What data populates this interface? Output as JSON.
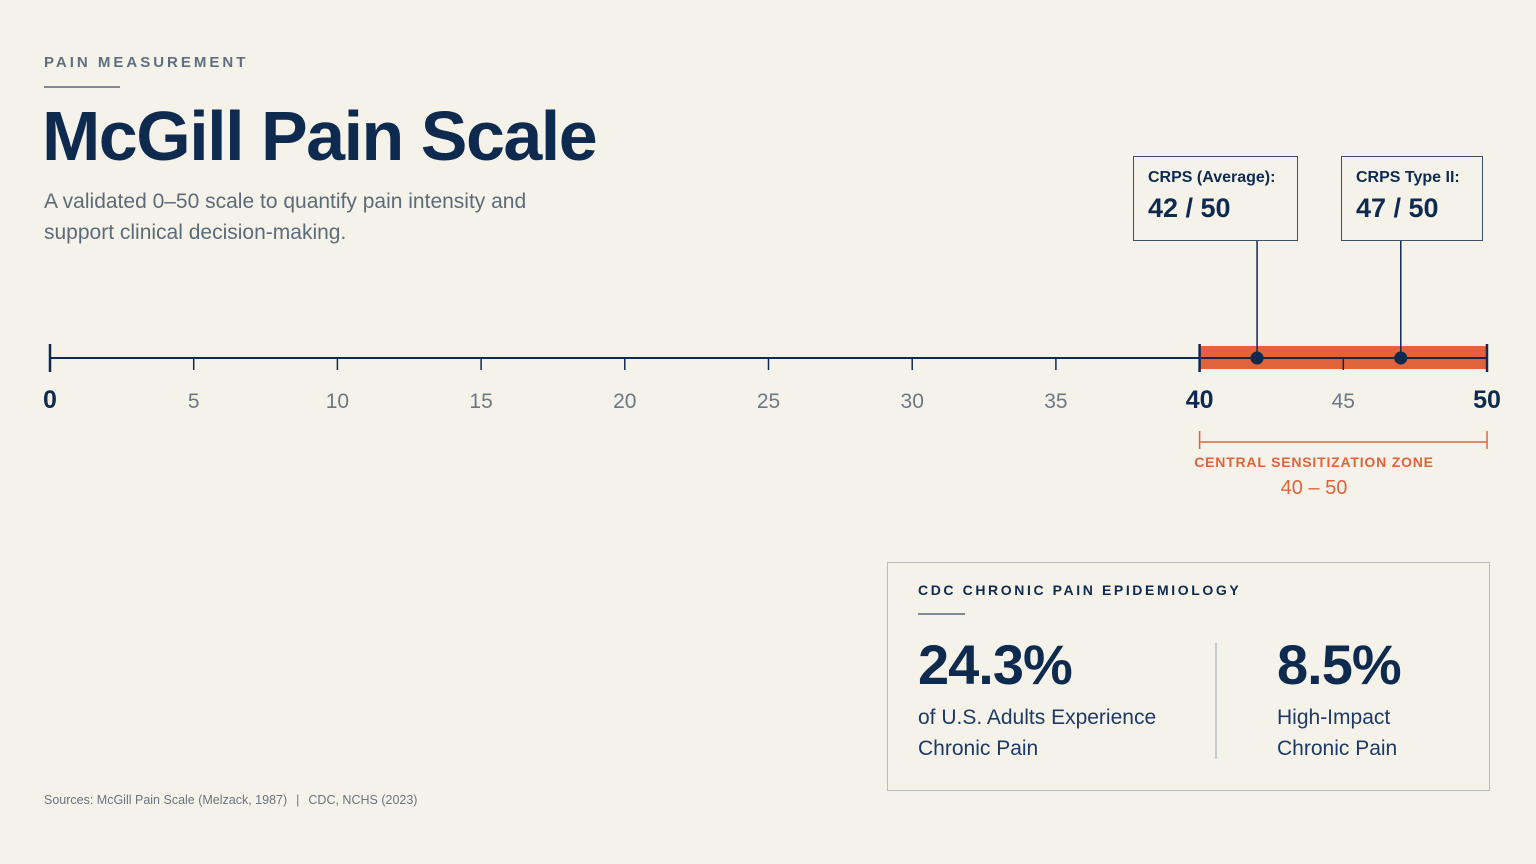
{
  "header": {
    "eyebrow": "PAIN MEASUREMENT",
    "title": "McGill Pain Scale",
    "subtitle": "A validated 0–50 scale to quantify pain intensity and support clinical decision-making."
  },
  "chart_data": {
    "type": "number-line",
    "range": [
      0,
      50
    ],
    "ticks": [
      0,
      5,
      10,
      15,
      20,
      25,
      30,
      35,
      40,
      45,
      50
    ],
    "tick_labels": [
      "0",
      "5",
      "10",
      "15",
      "20",
      "25",
      "30",
      "35",
      "40",
      "45",
      "50"
    ],
    "bold_ticks": [
      0,
      40,
      50
    ],
    "highlight_zone": {
      "from": 40,
      "to": 50,
      "label": "CENTRAL SENSITIZATION ZONE",
      "range_label": "40 – 50",
      "color": "#e0643a"
    },
    "markers": [
      {
        "name": "CRPS (Average):",
        "value": 42,
        "label": "42 / 50"
      },
      {
        "name": "CRPS Type II:",
        "value": 47,
        "label": "47 / 50"
      }
    ]
  },
  "stats": {
    "heading": "CDC CHRONIC PAIN EPIDEMIOLOGY",
    "items": [
      {
        "value": "24.3%",
        "description": "of U.S. Adults Experience Chronic Pain"
      },
      {
        "value": "8.5%",
        "description": "High-Impact Chronic Pain"
      }
    ]
  },
  "footer": {
    "source_1": "Sources: McGill Pain Scale (Melzack, 1987)",
    "separator": "|",
    "source_2": "CDC, NCHS (2023)"
  },
  "colors": {
    "navy": "#0e2a4e",
    "accent": "#e0643a",
    "background": "#f5f2ea"
  }
}
